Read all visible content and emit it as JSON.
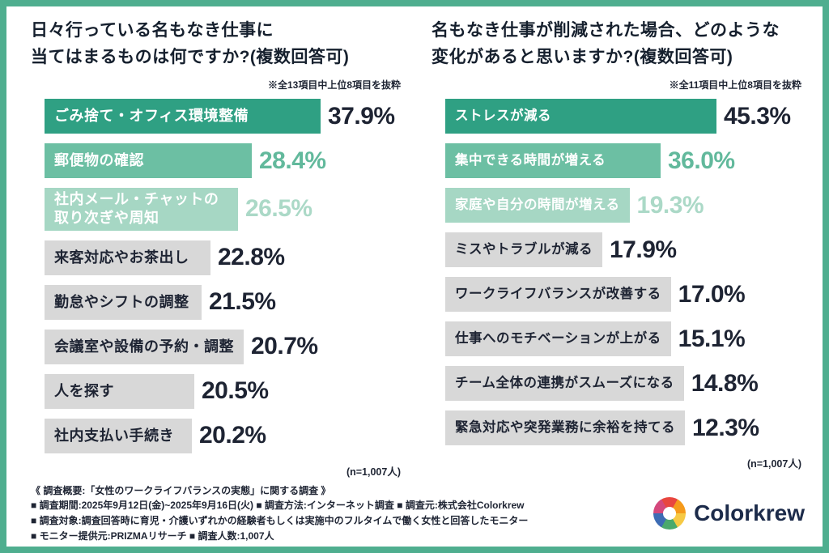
{
  "colors": {
    "accent_border": "#4FAE8F",
    "bar_rank1": "#2FA083",
    "bar_rank2": "#6CBFA3",
    "bar_rank3": "#A6D7C4",
    "bar_other": "#D8D8D8",
    "logo_navy": "#1C2B4A"
  },
  "chart_data": [
    {
      "type": "bar",
      "orientation": "horizontal",
      "title": "日々行っている名もなき仕事に当てはまるものは何ですか?(複数回答可)",
      "title_lines": [
        "日々行っている名もなき仕事に",
        "当てはまるものは何ですか?(複数回答可)"
      ],
      "note": "※全13項目中上位8項目を抜粋",
      "sample_size_label": "(n=1,007人)",
      "unit": "%",
      "xlim": [
        0,
        50
      ],
      "bars": [
        {
          "label": "ごみ捨て・オフィス環境整備",
          "value": 37.9,
          "display": "37.9%"
        },
        {
          "label": "郵便物の確認",
          "value": 28.4,
          "display": "28.4%"
        },
        {
          "label": "社内メール・チャットの\n取り次ぎや周知",
          "value": 26.5,
          "display": "26.5%"
        },
        {
          "label": "来客対応やお茶出し",
          "value": 22.8,
          "display": "22.8%"
        },
        {
          "label": "勤怠やシフトの調整",
          "value": 21.5,
          "display": "21.5%"
        },
        {
          "label": "会議室や設備の予約・調整",
          "value": 20.7,
          "display": "20.7%"
        },
        {
          "label": "人を探す",
          "value": 20.5,
          "display": "20.5%"
        },
        {
          "label": "社内支払い手続き",
          "value": 20.2,
          "display": "20.2%"
        }
      ]
    },
    {
      "type": "bar",
      "orientation": "horizontal",
      "title": "名もなき仕事が削減された場合、どのような変化があると思いますか?(複数回答可)",
      "title_lines": [
        "名もなき仕事が削減された場合、どのような",
        "変化があると思いますか?(複数回答可)"
      ],
      "note": "※全11項目中上位8項目を抜粋",
      "sample_size_label": "(n=1,007人)",
      "unit": "%",
      "xlim": [
        0,
        50
      ],
      "bars": [
        {
          "label": "ストレスが減る",
          "value": 45.3,
          "display": "45.3%"
        },
        {
          "label": "集中できる時間が増える",
          "value": 36.0,
          "display": "36.0%"
        },
        {
          "label": "家庭や自分の時間が増える",
          "value": 19.3,
          "display": "19.3%"
        },
        {
          "label": "ミスやトラブルが減る",
          "value": 17.9,
          "display": "17.9%"
        },
        {
          "label": "ワークライフバランスが改善する",
          "value": 17.0,
          "display": "17.0%"
        },
        {
          "label": "仕事へのモチベーションが上がる",
          "value": 15.1,
          "display": "15.1%"
        },
        {
          "label": "チーム全体の連携がスムーズになる",
          "value": 14.8,
          "display": "14.8%"
        },
        {
          "label": "緊急対応や突発業務に余裕を持てる",
          "value": 12.3,
          "display": "12.3%"
        }
      ]
    }
  ],
  "footer": {
    "lines": [
      "《 調査概要:「女性のワークライフバランスの実態」に関する調査 》",
      "■ 調査期間:2025年9月12日(金)~2025年9月16日(火) ■ 調査方法:インターネット調査 ■ 調査元:株式会社Colorkrew",
      "■ 調査対象:調査回答時に育児・介護いずれかの経験者もしくは実施中のフルタイムで働く女性と回答したモニター",
      "■ モニター提供元:PRIZMAリサーチ  ■ 調査人数:1,007人"
    ]
  },
  "logo": {
    "text": "Colorkrew"
  }
}
